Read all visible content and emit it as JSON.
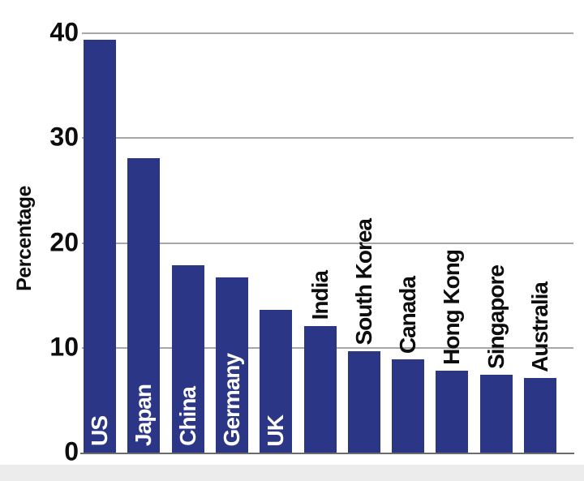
{
  "chart_data": {
    "type": "bar",
    "title": "",
    "xlabel": "",
    "ylabel": "Percentage",
    "ylim": [
      0,
      40
    ],
    "yticks": [
      0,
      10,
      20,
      30,
      40
    ],
    "grid": true,
    "legend": "none",
    "categories": [
      "US",
      "Japan",
      "China",
      "Germany",
      "UK",
      "India",
      "South Korea",
      "Canada",
      "Hong Kong",
      "Singapore",
      "Australia"
    ],
    "values": [
      39.4,
      28.1,
      17.9,
      16.7,
      13.6,
      12.1,
      9.7,
      8.9,
      7.8,
      7.4,
      7.1
    ],
    "label_placement": [
      "inside",
      "inside",
      "inside",
      "inside",
      "inside",
      "above",
      "above",
      "above",
      "above",
      "above",
      "above"
    ],
    "colors": {
      "bar": "#2b3786",
      "inside_label": "#ffffff",
      "above_label": "#0d0d0d",
      "gridline": "#a6a6a6",
      "axis_line": "#6b6b6b",
      "background": "#ffffff",
      "bottom_strip": "#ececec"
    }
  }
}
